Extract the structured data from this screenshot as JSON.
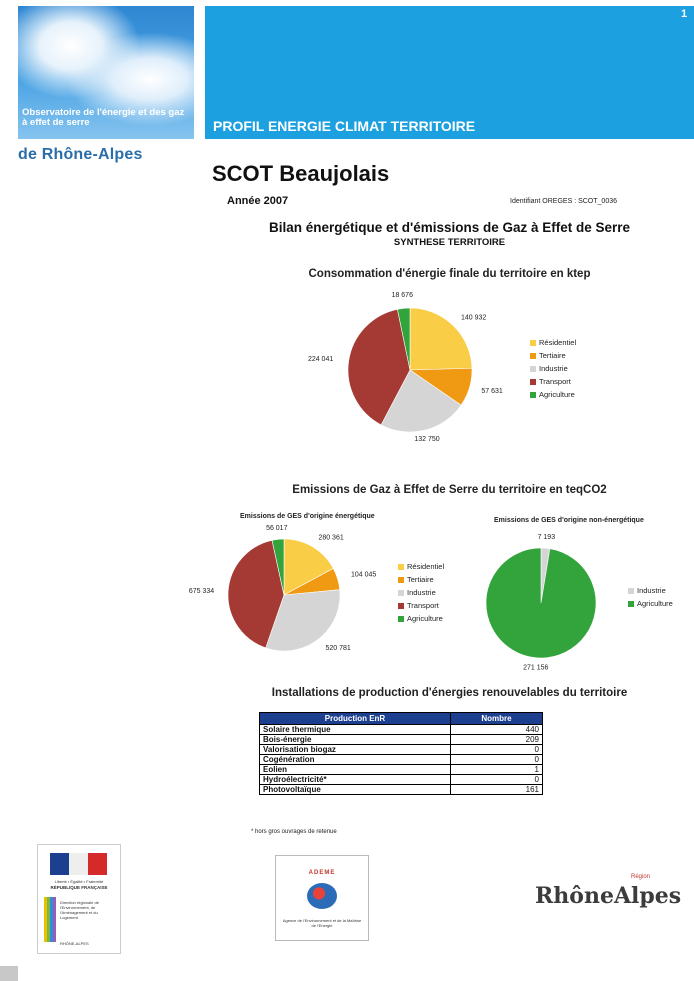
{
  "header": {
    "observatory": "Observatoire de l'énergie et des gaz à effet de serre",
    "region": "de Rhône-Alpes",
    "banner_title": "PROFIL ENERGIE CLIMAT TERRITOIRE",
    "page_number": "1"
  },
  "title": "SCOT Beaujolais",
  "year": "Année 2007",
  "identifier": "Identifiant OREGES : SCOT_0036",
  "bilan_title": "Bilan énergétique et d'émissions de Gaz à Effet de Serre",
  "synthese": "SYNTHESE TERRITOIRE",
  "colors": {
    "residentiel": "#f9cd46",
    "tertiaire": "#ef9a12",
    "industrie": "#d5d5d5",
    "transport": "#a43a33",
    "agriculture": "#33a33c",
    "banner": "#1da0df",
    "table_header": "#1d3f90"
  },
  "legend": [
    "Résidentiel",
    "Tertiaire",
    "Industrie",
    "Transport",
    "Agriculture"
  ],
  "legend_nonenergy": [
    "Industrie",
    "Agriculture"
  ],
  "chart_data": [
    {
      "type": "pie",
      "title": "Consommation d'énergie finale du territoire en ktep",
      "categories": [
        "Résidentiel",
        "Tertiaire",
        "Industrie",
        "Transport",
        "Agriculture"
      ],
      "values": [
        140932,
        57631,
        132750,
        224041,
        18676
      ],
      "labels": [
        "140 932",
        "57 631",
        "132 750",
        "224 041",
        "18 676"
      ]
    },
    {
      "type": "pie",
      "title": "Emissions de GES d'origine énergétique",
      "categories": [
        "Résidentiel",
        "Tertiaire",
        "Industrie",
        "Transport",
        "Agriculture"
      ],
      "values": [
        280361,
        104045,
        520781,
        675334,
        56017
      ],
      "labels": [
        "280 361",
        "104 045",
        "520 781",
        "675 334",
        "56 017"
      ]
    },
    {
      "type": "pie",
      "title": "Emissions de GES d'origine non-énergétique",
      "categories": [
        "Industrie",
        "Agriculture"
      ],
      "values": [
        7193,
        271156
      ],
      "labels": [
        "7 193",
        "271 156"
      ]
    }
  ],
  "emissions_title": "Emissions de Gaz à Effet de Serre du territoire en teqCO2",
  "eer": {
    "title": "Installations de production d'énergies renouvelables du territoire",
    "headers": [
      "Production EnR",
      "Nombre"
    ],
    "rows": [
      [
        "Solaire thermique",
        "440"
      ],
      [
        "Bois-énergie",
        "209"
      ],
      [
        "Valorisation biogaz",
        "0"
      ],
      [
        "Cogénération",
        "0"
      ],
      [
        "Eolien",
        "1"
      ],
      [
        "Hydroélectricité*",
        "0"
      ],
      [
        "Photovoltaïque",
        "161"
      ]
    ],
    "footnote": "* hors gros ouvrages de retenue"
  },
  "logos": {
    "prefecture_text": "Liberté • Égalité • Fraternité",
    "republique": "RÉPUBLIQUE FRANÇAISE",
    "dreal": "Direction régionale de l'Environnement, de l'Aménagement et du Logement",
    "dreal_short": "RHÔNE-ALPES",
    "ademe": "ADEME",
    "ademe_sub": "Agence de l'Environnement et de la Maîtrise de l'Energie",
    "region_logo": "RhôneAlpes",
    "region_small": "Région"
  }
}
